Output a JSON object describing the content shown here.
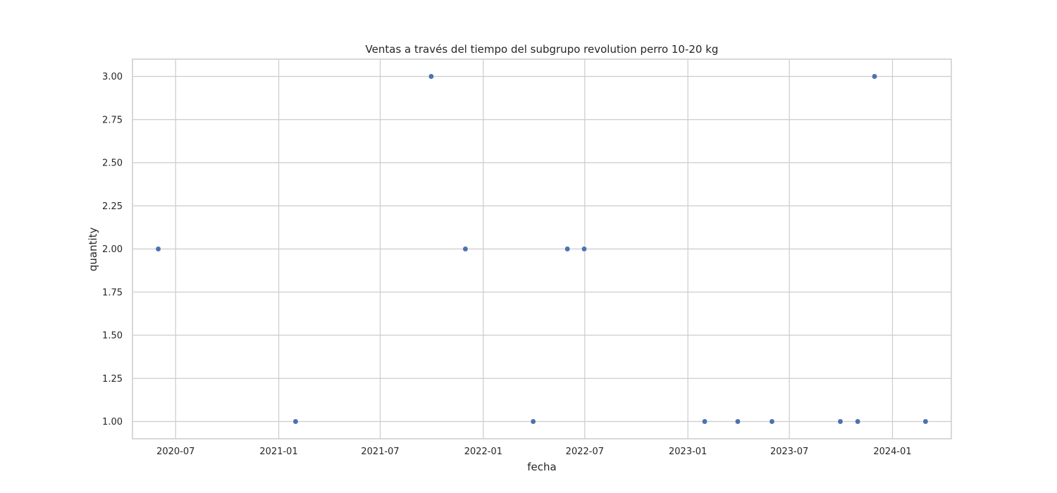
{
  "chart_data": {
    "type": "scatter",
    "title": "Ventas a través del tiempo del subgrupo revolution perro 10-20 kg",
    "xlabel": "fecha",
    "ylabel": "quantity",
    "x_scale": "date",
    "xlim": [
      "2020-04-15",
      "2024-04-15"
    ],
    "ylim": [
      0.9,
      3.1
    ],
    "x_ticks": [
      "2020-07",
      "2021-01",
      "2021-07",
      "2022-01",
      "2022-07",
      "2023-01",
      "2023-07",
      "2024-01"
    ],
    "y_ticks": [
      "1.00",
      "1.25",
      "1.50",
      "1.75",
      "2.00",
      "2.25",
      "2.50",
      "2.75",
      "3.00"
    ],
    "grid": true,
    "marker_color": "#4c72b0",
    "points": [
      {
        "x": "2020-05-31",
        "y": 2
      },
      {
        "x": "2021-01-31",
        "y": 1
      },
      {
        "x": "2021-09-30",
        "y": 3
      },
      {
        "x": "2021-11-30",
        "y": 2
      },
      {
        "x": "2022-03-31",
        "y": 1
      },
      {
        "x": "2022-05-31",
        "y": 2
      },
      {
        "x": "2022-06-30",
        "y": 2
      },
      {
        "x": "2023-01-31",
        "y": 1
      },
      {
        "x": "2023-03-31",
        "y": 1
      },
      {
        "x": "2023-05-31",
        "y": 1
      },
      {
        "x": "2023-09-30",
        "y": 1
      },
      {
        "x": "2023-10-31",
        "y": 1
      },
      {
        "x": "2023-11-30",
        "y": 3
      },
      {
        "x": "2024-02-29",
        "y": 1
      }
    ]
  }
}
